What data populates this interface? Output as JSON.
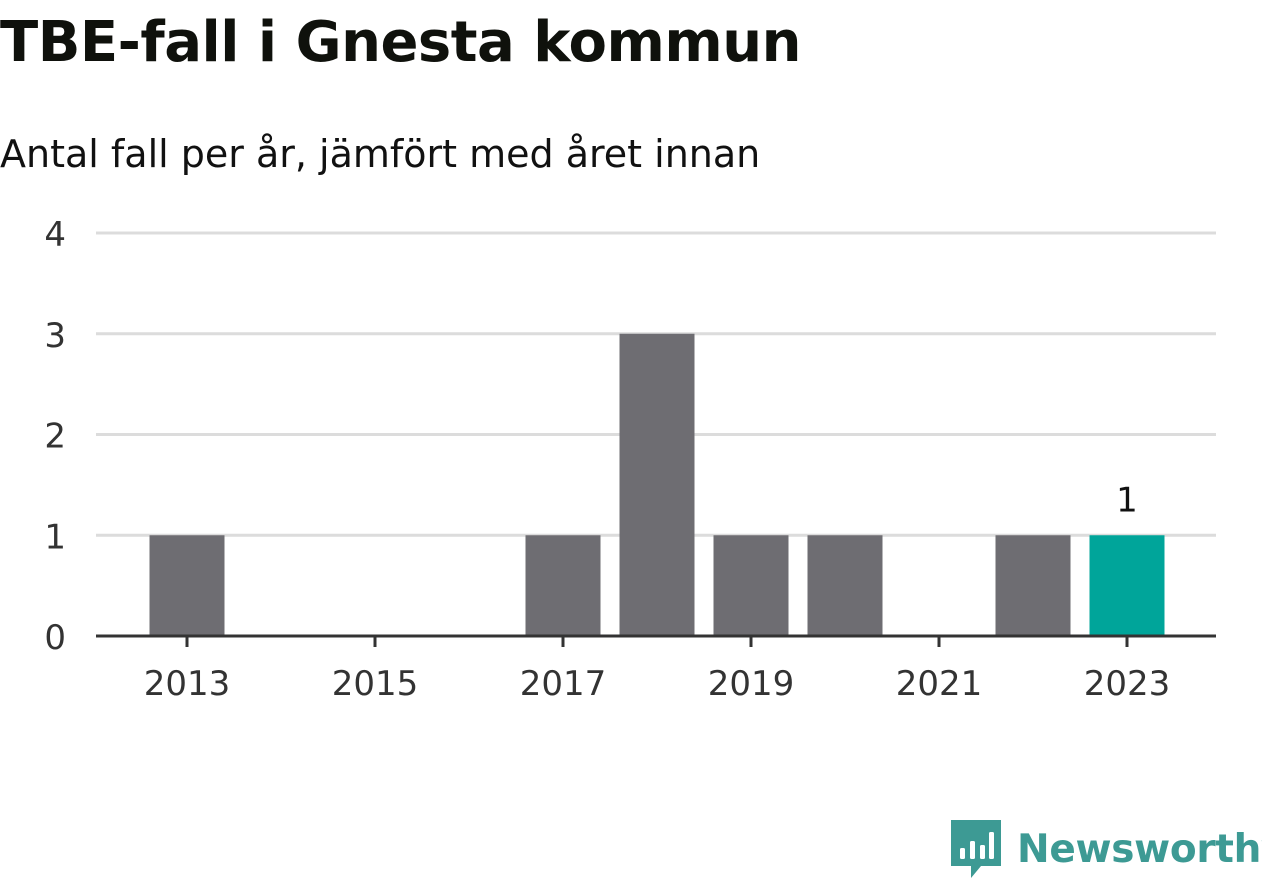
{
  "header": {
    "title": "TBE-fall i Gnesta kommun",
    "subtitle": "Antal fall per år, jämfört med året innan"
  },
  "brand": {
    "name": "Newsworthy",
    "icon": "bar-chart-speech-bubble-icon",
    "color": "#3d9a94"
  },
  "chart_data": {
    "type": "bar",
    "title": "TBE-fall i Gnesta kommun",
    "subtitle": "Antal fall per år, jämfört med året innan",
    "xlabel": "",
    "ylabel": "",
    "categories": [
      2013,
      2014,
      2015,
      2016,
      2017,
      2018,
      2019,
      2020,
      2021,
      2022,
      2023
    ],
    "values": [
      1,
      0,
      0,
      0,
      1,
      3,
      1,
      1,
      0,
      1,
      1
    ],
    "x_tick_labels": [
      "2013",
      "2015",
      "2017",
      "2019",
      "2021",
      "2023"
    ],
    "y_ticks": [
      0,
      1,
      2,
      3,
      4
    ],
    "ylim": [
      0,
      4
    ],
    "grid": true,
    "highlight": {
      "category": 2023,
      "label": "1"
    },
    "colors": {
      "bar": "#6e6d72",
      "highlight": "#00a59a",
      "grid": "#dcdcdc",
      "axis": "#333333"
    }
  }
}
